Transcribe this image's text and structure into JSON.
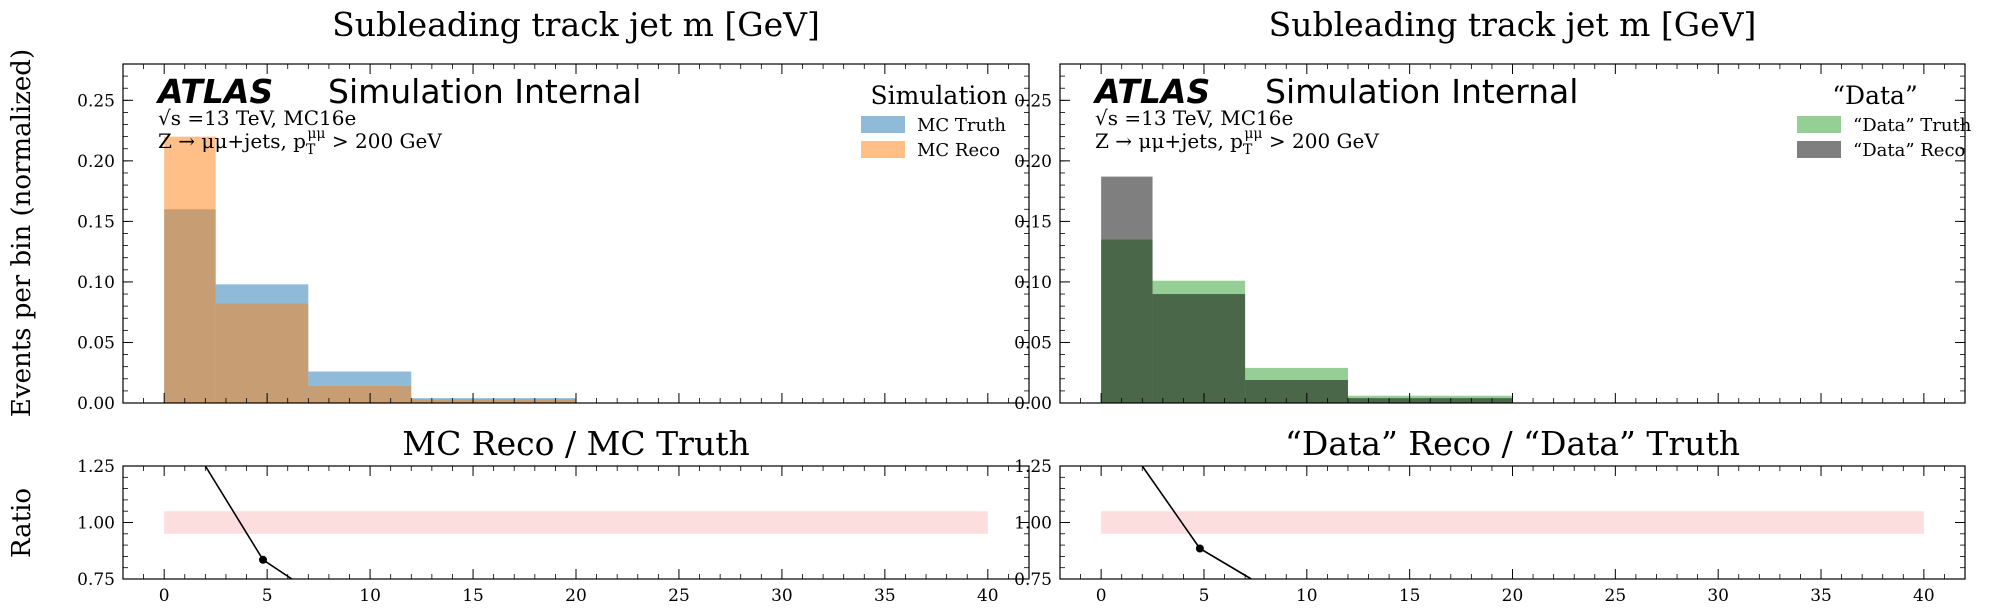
{
  "figure": {
    "ylabel_main": "Events per bin (normalized)",
    "ylabel_ratio": "Ratio"
  },
  "atlas": {
    "brand": "ATLAS",
    "tag": "Simulation Internal",
    "line1": "√s =13 TeV, MC16e",
    "line2": "Z → μμ+jets, p_T^μμ > 200 GeV"
  },
  "colors": {
    "mc_truth": "#1f77b4",
    "mc_reco": "#ff7f0e",
    "data_truth": "#2ca02c",
    "data_reco": "#000000",
    "ratio_band": "#fddede",
    "ratio_line": "#000000"
  },
  "chart_data": [
    {
      "type": "bar",
      "subtype": "step-filled-histogram",
      "title": "Subleading track jet m [GeV]",
      "ylabel": "Events per bin (normalized)",
      "ylim": [
        0,
        0.28
      ],
      "xlim": [
        -2,
        42
      ],
      "yticks": [
        0.0,
        0.05,
        0.1,
        0.15,
        0.2,
        0.25
      ],
      "legend_title": "Simulation",
      "legend_position": "top-right",
      "bin_edges": [
        0,
        2.5,
        7,
        12,
        20,
        40
      ],
      "series": [
        {
          "name": "MC Truth",
          "values": [
            0.16,
            0.098,
            0.026,
            0.004,
            0.0003
          ],
          "color": "#1f77b4"
        },
        {
          "name": "MC Reco",
          "values": [
            0.22,
            0.082,
            0.014,
            0.003,
            0.0002
          ],
          "color": "#ff7f0e"
        }
      ]
    },
    {
      "type": "bar",
      "subtype": "step-filled-histogram",
      "title": "Subleading track jet m [GeV]",
      "ylim": [
        0,
        0.28
      ],
      "xlim": [
        -2,
        42
      ],
      "yticks": [
        0.0,
        0.05,
        0.1,
        0.15,
        0.2,
        0.25
      ],
      "legend_title": "“Data”",
      "legend_position": "top-right",
      "bin_edges": [
        0,
        2.5,
        7,
        12,
        20,
        40
      ],
      "series": [
        {
          "name": "“Data” Truth",
          "values": [
            0.135,
            0.101,
            0.029,
            0.006,
            0.0004
          ],
          "color": "#2ca02c"
        },
        {
          "name": "“Data” Reco",
          "values": [
            0.187,
            0.09,
            0.019,
            0.004,
            0.0003
          ],
          "color": "#000000"
        }
      ]
    },
    {
      "type": "line",
      "title": "MC Reco / MC Truth",
      "ylabel": "Ratio",
      "ylim": [
        0.75,
        1.25
      ],
      "xlim": [
        -2,
        42
      ],
      "yticks": [
        0.75,
        1.0,
        1.25
      ],
      "xticks": [
        0,
        5,
        10,
        15,
        20,
        25,
        30,
        35,
        40
      ],
      "band": {
        "y": [
          0.95,
          1.05
        ],
        "x": [
          0,
          40
        ]
      },
      "line_x": [
        2.0,
        4.8,
        6.2
      ],
      "line_y": [
        1.25,
        0.835,
        0.75
      ],
      "points": [
        {
          "x": 4.8,
          "y": 0.835
        }
      ]
    },
    {
      "type": "line",
      "title": "“Data” Reco / “Data” Truth",
      "ylim": [
        0.75,
        1.25
      ],
      "xlim": [
        -2,
        42
      ],
      "yticks": [
        0.75,
        1.0,
        1.25
      ],
      "xticks": [
        0,
        5,
        10,
        15,
        20,
        25,
        30,
        35,
        40
      ],
      "band": {
        "y": [
          0.95,
          1.05
        ],
        "x": [
          0,
          40
        ]
      },
      "line_x": [
        2.0,
        4.8,
        7.3
      ],
      "line_y": [
        1.25,
        0.885,
        0.75
      ],
      "points": [
        {
          "x": 4.8,
          "y": 0.885
        }
      ]
    }
  ]
}
